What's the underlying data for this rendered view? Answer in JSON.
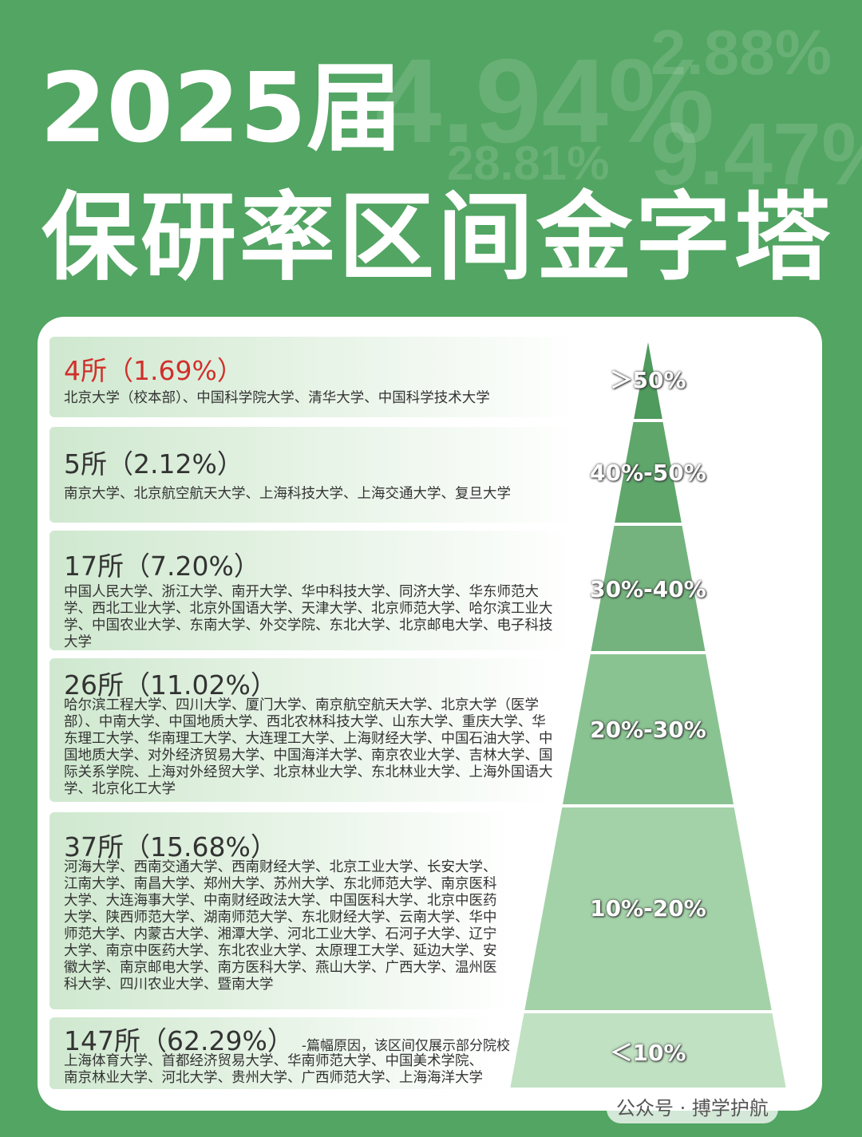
{
  "header": {
    "title_line1": "2025届",
    "title_line2": "保研率区间金字塔",
    "background_figures": [
      "4.94%",
      "2.88%",
      "28.81%",
      "9.47%"
    ]
  },
  "tiers": [
    {
      "heading": "4所（1.69%）",
      "schools": "北京大学（校本部）、中国科学院大学、清华大学、中国科学技术大学",
      "range": "＞50%"
    },
    {
      "heading": "5所（2.12%）",
      "schools": "南京大学、北京航空航天大学、上海科技大学、上海交通大学、复旦大学",
      "range": "40%-50%"
    },
    {
      "heading": "17所（7.20%）",
      "schools": "中国人民大学、浙江大学、南开大学、华中科技大学、同济大学、华东师范大学、西北工业大学、北京外国语大学、天津大学、北京师范大学、哈尔滨工业大学、中国农业大学、东南大学、外交学院、东北大学、北京邮电大学、电子科技大学",
      "range": "30%-40%"
    },
    {
      "heading": "26所（11.02%）",
      "schools": "哈尔滨工程大学、四川大学、厦门大学、南京航空航天大学、北京大学（医学部）、中南大学、中国地质大学、西北农林科技大学、山东大学、重庆大学、华东理工大学、华南理工大学、大连理工大学、上海财经大学、中国石油大学、中国地质大学、对外经济贸易大学、中国海洋大学、南京农业大学、吉林大学、国际关系学院、上海对外经贸大学、北京林业大学、东北林业大学、上海外国语大学、北京化工大学",
      "range": "20%-30%"
    },
    {
      "heading": "37所（15.68%）",
      "schools": "河海大学、西南交通大学、西南财经大学、北京工业大学、长安大学、江南大学、南昌大学、郑州大学、苏州大学、东北师范大学、南京医科大学、大连海事大学、中南财经政法大学、中国医科大学、北京中医药大学、陕西师范大学、湖南师范大学、东北财经大学、云南大学、华中师范大学、内蒙古大学、湘潭大学、河北工业大学、石河子大学、辽宁大学、南京中医药大学、东北农业大学、太原理工大学、延边大学、安徽大学、南京邮电大学、南方医科大学、燕山大学、广西大学、温州医科大学、四川农业大学、暨南大学",
      "range": "10%-20%"
    },
    {
      "heading": "147所（62.29%）",
      "note": "-篇幅原因，该区间仅展示部分院校",
      "schools": "上海体育大学、首都经济贸易大学、华南师范大学、中国美术学院、南京林业大学、河北大学、贵州大学、广西师范大学、上海海洋大学",
      "range": "＜10%"
    }
  ],
  "watermark": "公众号 · 搏学护航"
}
